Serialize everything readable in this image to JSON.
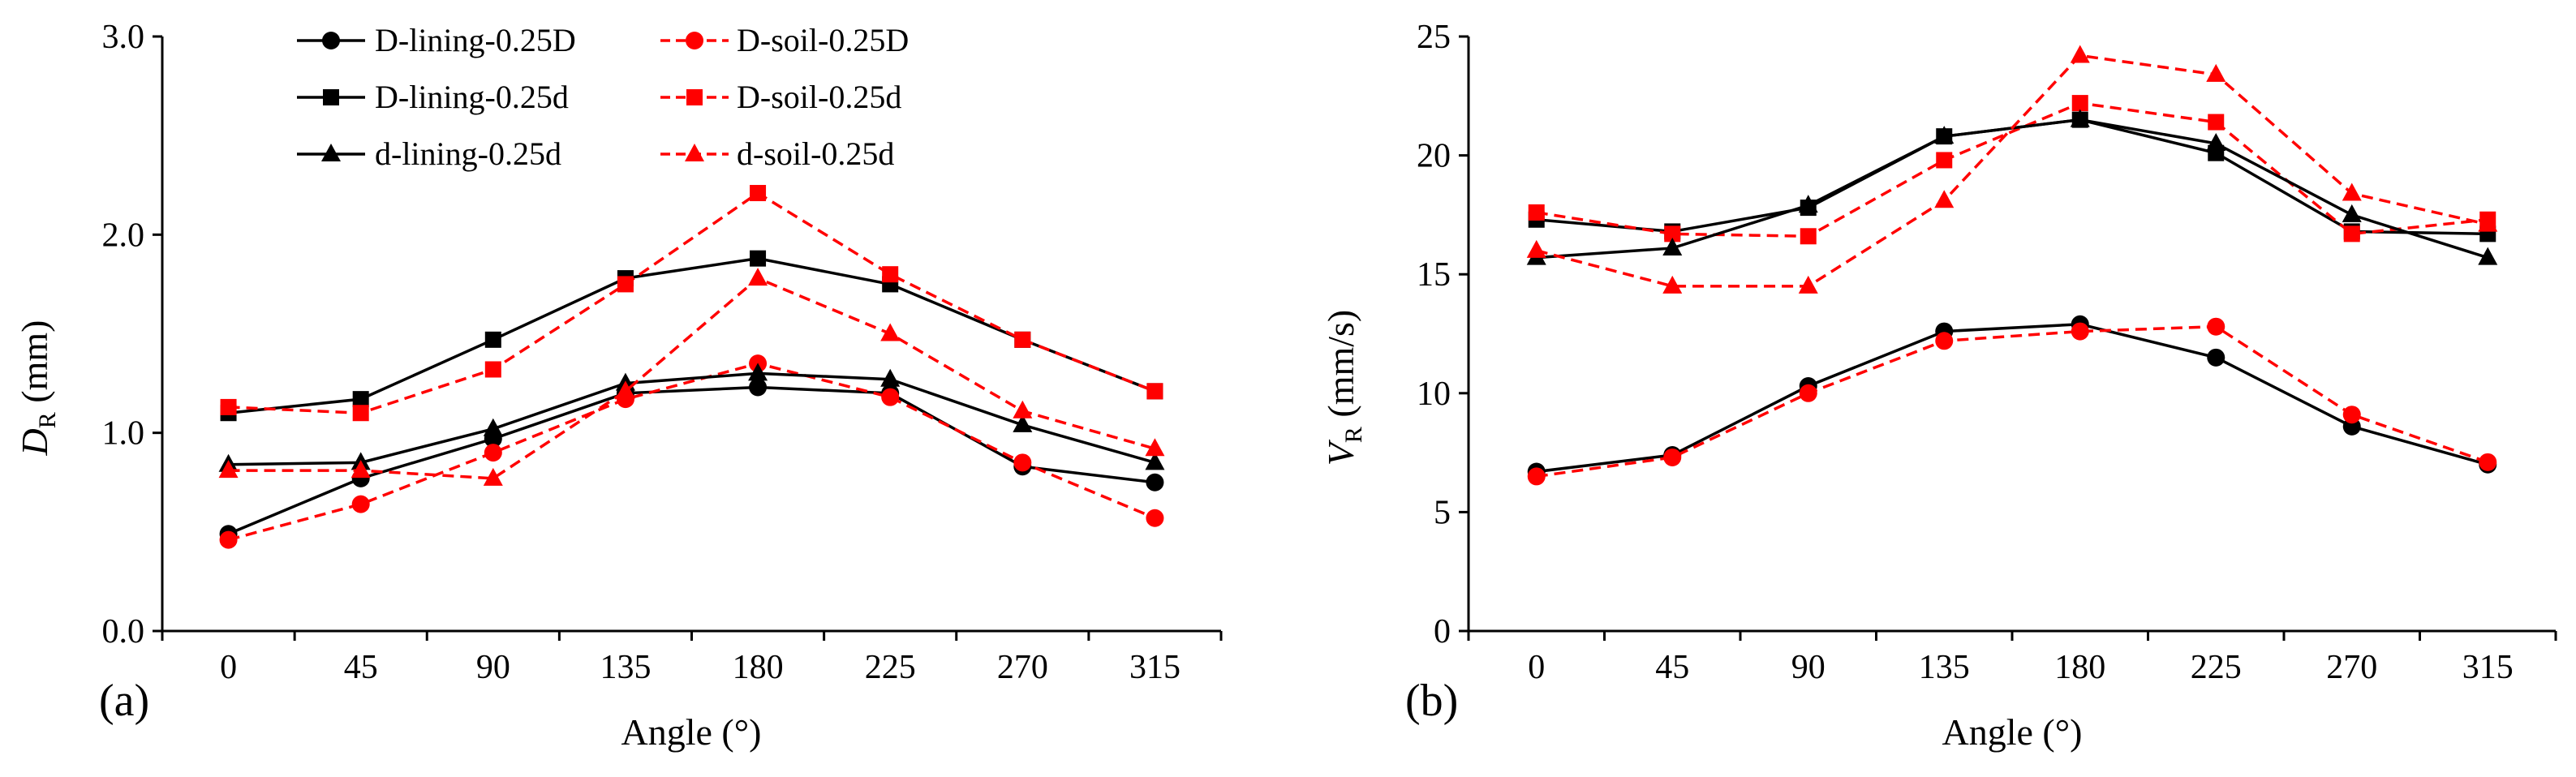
{
  "chart_data": [
    {
      "type": "line",
      "panel_label": "(a)",
      "xlabel": "Angle (°)",
      "ylabel_main": "D",
      "ylabel_sub": "R",
      "ylabel_unit": " (mm)",
      "categories": [
        "0",
        "45",
        "90",
        "135",
        "180",
        "225",
        "270",
        "315"
      ],
      "ylim": [
        0,
        3.0
      ],
      "yticks": [
        "0.0",
        "1.0",
        "2.0",
        "3.0"
      ],
      "ytick_values": [
        0,
        1,
        2,
        3
      ],
      "legend_position": "top-left",
      "series": [
        {
          "name": "D-lining-0.25D",
          "color": "#000000",
          "dash": "solid",
          "marker": "circle",
          "values": [
            0.49,
            0.77,
            0.97,
            1.2,
            1.23,
            1.2,
            0.83,
            0.75
          ]
        },
        {
          "name": "D-soil-0.25D",
          "color": "#ff0000",
          "dash": "dashed",
          "marker": "circle",
          "values": [
            0.46,
            0.64,
            0.9,
            1.17,
            1.35,
            1.18,
            0.85,
            0.57
          ]
        },
        {
          "name": "D-lining-0.25d",
          "color": "#000000",
          "dash": "solid",
          "marker": "square",
          "values": [
            1.1,
            1.17,
            1.47,
            1.78,
            1.88,
            1.75,
            1.47,
            1.21
          ]
        },
        {
          "name": "D-soil-0.25d",
          "color": "#ff0000",
          "dash": "dashed",
          "marker": "square",
          "values": [
            1.13,
            1.1,
            1.32,
            1.75,
            2.21,
            1.8,
            1.47,
            1.21
          ]
        },
        {
          "name": "d-lining-0.25d",
          "color": "#000000",
          "dash": "solid",
          "marker": "triangle",
          "values": [
            0.84,
            0.85,
            1.02,
            1.25,
            1.3,
            1.27,
            1.04,
            0.85
          ]
        },
        {
          "name": "d-soil-0.25d",
          "color": "#ff0000",
          "dash": "dashed",
          "marker": "triangle",
          "values": [
            0.81,
            0.81,
            0.77,
            1.21,
            1.78,
            1.5,
            1.11,
            0.92
          ]
        }
      ]
    },
    {
      "type": "line",
      "panel_label": "(b)",
      "xlabel": "Angle (°)",
      "ylabel_main": "V",
      "ylabel_sub": "R",
      "ylabel_unit": " (mm/s)",
      "categories": [
        "0",
        "45",
        "90",
        "135",
        "180",
        "225",
        "270",
        "315"
      ],
      "ylim": [
        0,
        25
      ],
      "yticks": [
        "0",
        "5",
        "10",
        "15",
        "20",
        "25"
      ],
      "ytick_values": [
        0,
        5,
        10,
        15,
        20,
        25
      ],
      "legend_position": "none",
      "series": [
        {
          "name": "D-lining-0.25D",
          "color": "#000000",
          "dash": "solid",
          "marker": "circle",
          "values": [
            6.7,
            7.4,
            10.3,
            12.6,
            12.9,
            11.5,
            8.6,
            7.0
          ]
        },
        {
          "name": "D-soil-0.25D",
          "color": "#ff0000",
          "dash": "dashed",
          "marker": "circle",
          "values": [
            6.5,
            7.3,
            10.0,
            12.2,
            12.6,
            12.8,
            9.1,
            7.1
          ]
        },
        {
          "name": "D-lining-0.25d",
          "color": "#000000",
          "dash": "solid",
          "marker": "square",
          "values": [
            17.3,
            16.8,
            17.8,
            20.8,
            21.5,
            20.1,
            16.8,
            16.7
          ]
        },
        {
          "name": "D-soil-0.25d",
          "color": "#ff0000",
          "dash": "dashed",
          "marker": "square",
          "values": [
            17.6,
            16.7,
            16.6,
            19.8,
            22.2,
            21.4,
            16.7,
            17.3
          ]
        },
        {
          "name": "d-lining-0.25d",
          "color": "#000000",
          "dash": "solid",
          "marker": "triangle",
          "values": [
            15.7,
            16.1,
            17.9,
            20.8,
            21.5,
            20.5,
            17.5,
            15.7
          ]
        },
        {
          "name": "d-soil-0.25d",
          "color": "#ff0000",
          "dash": "dashed",
          "marker": "triangle",
          "values": [
            16.0,
            14.5,
            14.5,
            18.1,
            24.2,
            23.4,
            18.4,
            17.1
          ]
        }
      ]
    }
  ]
}
